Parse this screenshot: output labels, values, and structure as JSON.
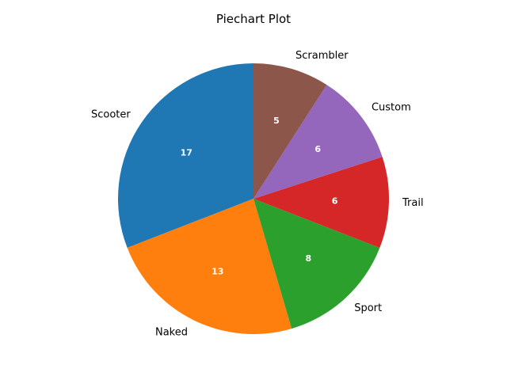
{
  "chart_data": {
    "type": "pie",
    "title": "Piechart Plot",
    "categories": [
      "Scooter",
      "Naked",
      "Sport",
      "Trail",
      "Custom",
      "Scrambler"
    ],
    "values": [
      17,
      13,
      8,
      6,
      6,
      5
    ],
    "colors": [
      "#1f77b4",
      "#ff7f0e",
      "#2ca02c",
      "#d62728",
      "#9467bd",
      "#8c564b"
    ],
    "start_angle_deg": 90,
    "direction": "counterclockwise"
  }
}
